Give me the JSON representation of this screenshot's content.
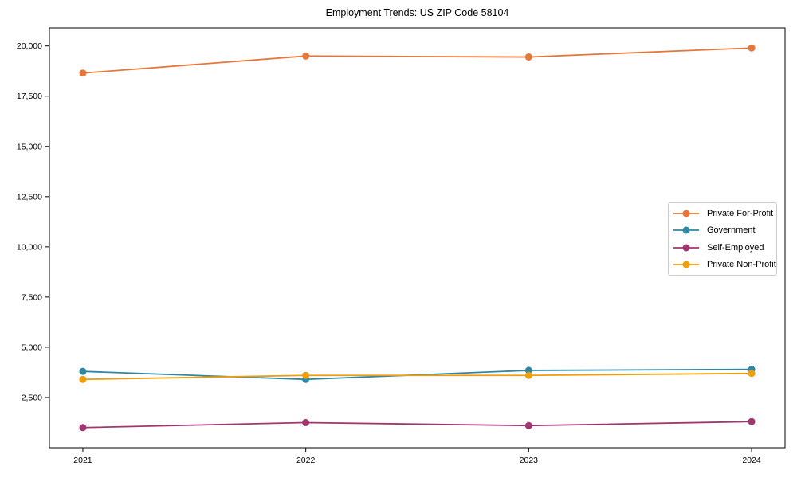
{
  "chart_data": {
    "type": "line",
    "title": "Employment Trends: US ZIP Code 58104",
    "categories": [
      "2021",
      "2022",
      "2023",
      "2024"
    ],
    "x": [
      2021,
      2022,
      2023,
      2024
    ],
    "series": [
      {
        "name": "Private For-Profit",
        "color": "#e5773b",
        "values": [
          18650,
          19500,
          19450,
          19900
        ]
      },
      {
        "name": "Government",
        "color": "#2f87a4",
        "values": [
          3800,
          3400,
          3850,
          3900
        ]
      },
      {
        "name": "Self-Employed",
        "color": "#a23670",
        "values": [
          1000,
          1250,
          1100,
          1300
        ]
      },
      {
        "name": "Private Non-Profit",
        "color": "#f09d0e",
        "values": [
          3400,
          3600,
          3600,
          3700
        ]
      }
    ],
    "yticks": [
      2500,
      5000,
      7500,
      10000,
      12500,
      15000,
      17500,
      20000
    ],
    "ytick_labels": [
      "2,500",
      "5,000",
      "7,500",
      "10,000",
      "12,500",
      "15,000",
      "17,500",
      "20,000"
    ],
    "ylim": [
      0,
      20900
    ],
    "xlabel": "",
    "ylabel": "",
    "grid": false,
    "legend_position": "middle-right",
    "marker": "circle",
    "axis_color": "#000000",
    "text_color": "#000000",
    "background": "#ffffff"
  }
}
